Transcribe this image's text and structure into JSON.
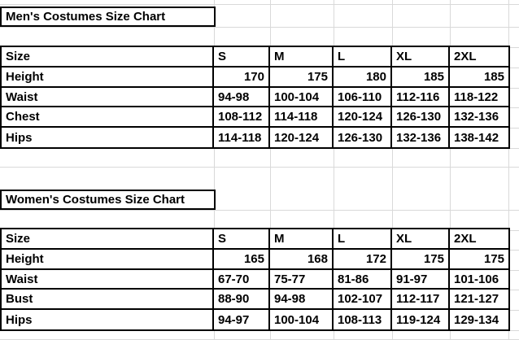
{
  "colors": {
    "background": "#ffffff",
    "gridline": "#d9d9d9",
    "table_border": "#000000",
    "text": "#000000"
  },
  "chart_data": [
    {
      "type": "table",
      "title": "Men's Costumes Size Chart",
      "columns": [
        "Size",
        "S",
        "M",
        "L",
        "XL",
        "2XL"
      ],
      "rows": [
        {
          "label": "Height",
          "value_align": "right",
          "values": [
            "170",
            "175",
            "180",
            "185",
            "185"
          ]
        },
        {
          "label": "Waist",
          "value_align": "left",
          "values": [
            "94-98",
            "100-104",
            "106-110",
            "112-116",
            "118-122"
          ]
        },
        {
          "label": "Chest",
          "value_align": "left",
          "values": [
            "108-112",
            "114-118",
            "120-124",
            "126-130",
            "132-136"
          ]
        },
        {
          "label": "Hips",
          "value_align": "left",
          "values": [
            "114-118",
            "120-124",
            "126-130",
            "132-136",
            "138-142"
          ]
        }
      ]
    },
    {
      "type": "table",
      "title": "Women's Costumes Size Chart",
      "columns": [
        "Size",
        "S",
        "M",
        "L",
        "XL",
        "2XL"
      ],
      "rows": [
        {
          "label": "Height",
          "value_align": "right",
          "values": [
            "165",
            "168",
            "172",
            "175",
            "175"
          ]
        },
        {
          "label": "Waist",
          "value_align": "left",
          "values": [
            "67-70",
            "75-77",
            "81-86",
            "91-97",
            "101-106"
          ]
        },
        {
          "label": "Bust",
          "value_align": "left",
          "values": [
            "88-90",
            "94-98",
            "102-107",
            "112-117",
            "121-127"
          ]
        },
        {
          "label": "Hips",
          "value_align": "left",
          "values": [
            "94-97",
            "100-104",
            "108-113",
            "119-124",
            "129-134"
          ]
        }
      ]
    }
  ]
}
